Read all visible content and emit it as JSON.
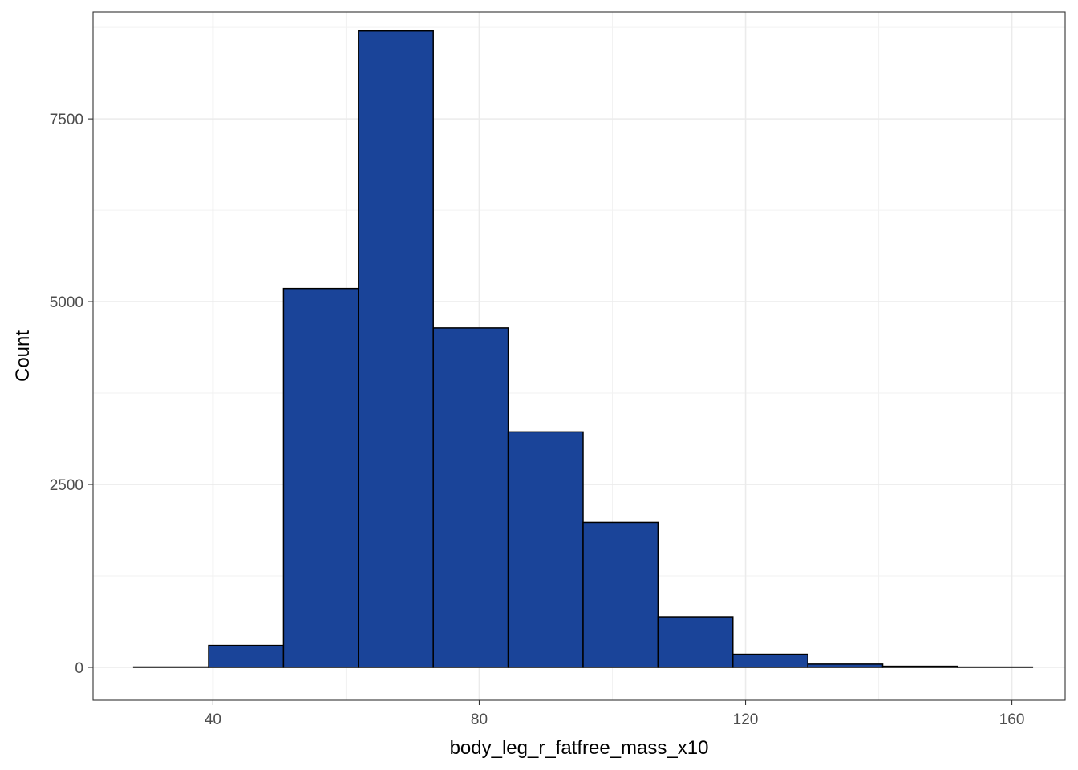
{
  "chart_data": {
    "type": "bar",
    "subtype": "histogram",
    "title": "",
    "xlabel": "body_leg_r_fatfree_mass_x10",
    "ylabel": "Count",
    "xlim": [
      22,
      168
    ],
    "ylim": [
      -450,
      8960
    ],
    "x_ticks": [
      40,
      80,
      120,
      160
    ],
    "y_ticks": [
      0,
      2500,
      5000,
      7500
    ],
    "x_minor_ticks": [
      60,
      100,
      140
    ],
    "y_minor_ticks": [
      1250,
      3750,
      6250,
      8750
    ],
    "bin_width": 11.25,
    "bins": [
      {
        "start": 28.1,
        "end": 39.35,
        "count": 5
      },
      {
        "start": 39.35,
        "end": 50.6,
        "count": 300
      },
      {
        "start": 50.6,
        "end": 61.85,
        "count": 5180
      },
      {
        "start": 61.85,
        "end": 73.1,
        "count": 8700
      },
      {
        "start": 73.1,
        "end": 84.35,
        "count": 4640
      },
      {
        "start": 84.35,
        "end": 95.6,
        "count": 3220
      },
      {
        "start": 95.6,
        "end": 106.85,
        "count": 1980
      },
      {
        "start": 106.85,
        "end": 118.1,
        "count": 690
      },
      {
        "start": 118.1,
        "end": 129.35,
        "count": 180
      },
      {
        "start": 129.35,
        "end": 140.6,
        "count": 45
      },
      {
        "start": 140.6,
        "end": 151.85,
        "count": 15
      },
      {
        "start": 151.85,
        "end": 163.1,
        "count": 4
      }
    ],
    "fill_color": "#1a4499",
    "edge_color": "#000000",
    "grid": true,
    "theme": "bw"
  }
}
